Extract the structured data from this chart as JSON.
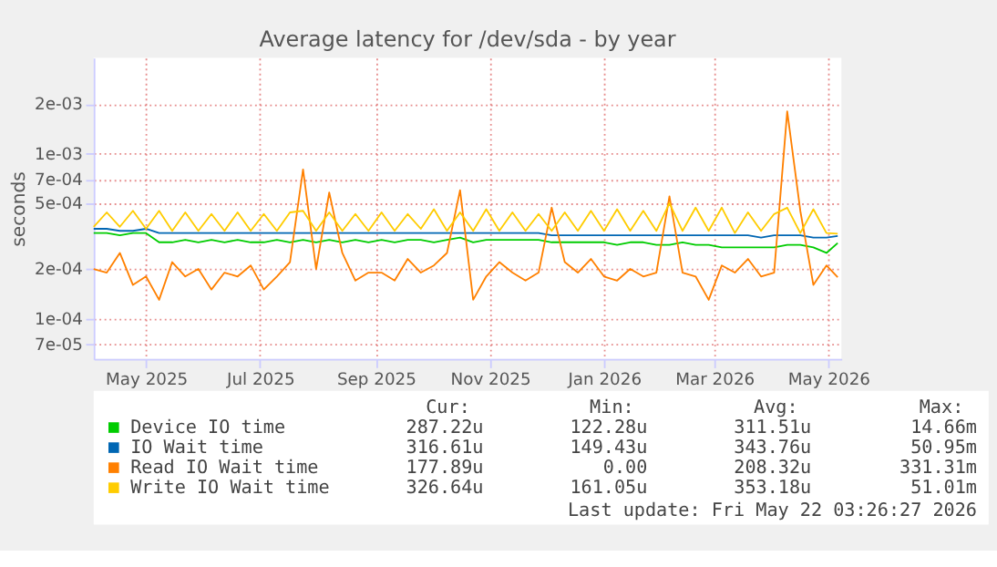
{
  "chart_data": {
    "type": "line",
    "title": "Average latency for /dev/sda - by year",
    "ylabel": "seconds",
    "log": "y",
    "grid": true,
    "legend": "bottom",
    "line_style": "solid",
    "marker": "none",
    "x": [
      "2025-04-03",
      "2025-04-10",
      "2025-04-17",
      "2025-04-24",
      "2025-05-01",
      "2025-05-08",
      "2025-05-15",
      "2025-05-22",
      "2025-05-29",
      "2025-06-05",
      "2025-06-12",
      "2025-06-19",
      "2025-06-26",
      "2025-07-03",
      "2025-07-10",
      "2025-07-17",
      "2025-07-24",
      "2025-07-31",
      "2025-08-07",
      "2025-08-14",
      "2025-08-21",
      "2025-08-28",
      "2025-09-04",
      "2025-09-11",
      "2025-09-18",
      "2025-09-25",
      "2025-10-02",
      "2025-10-09",
      "2025-10-16",
      "2025-10-23",
      "2025-10-30",
      "2025-11-06",
      "2025-11-13",
      "2025-11-20",
      "2025-11-27",
      "2025-12-04",
      "2025-12-11",
      "2025-12-18",
      "2025-12-25",
      "2026-01-01",
      "2026-01-08",
      "2026-01-15",
      "2026-01-22",
      "2026-01-29",
      "2026-02-05",
      "2026-02-12",
      "2026-02-19",
      "2026-02-26",
      "2026-03-05",
      "2026-03-12",
      "2026-03-19",
      "2026-03-26",
      "2026-04-02",
      "2026-04-09",
      "2026-04-16",
      "2026-04-23",
      "2026-04-30",
      "2026-05-06"
    ],
    "xlim": [
      "2025-04-03",
      "2026-05-08"
    ],
    "xticks": [
      {
        "value": "2025-05-01",
        "label": "May 2025"
      },
      {
        "value": "2025-07-01",
        "label": "Jul 2025"
      },
      {
        "value": "2025-09-01",
        "label": "Sep 2025"
      },
      {
        "value": "2025-11-01",
        "label": "Nov 2025"
      },
      {
        "value": "2026-01-01",
        "label": "Jan 2026"
      },
      {
        "value": "2026-03-01",
        "label": "Mar 2026"
      },
      {
        "value": "2026-05-01",
        "label": "May 2026"
      }
    ],
    "ylim": [
      5.7e-05,
      0.0038
    ],
    "yticks": [
      {
        "value": 7e-05,
        "label": "7e-05"
      },
      {
        "value": 0.0001,
        "label": "1e-04"
      },
      {
        "value": 0.0002,
        "label": "2e-04"
      },
      {
        "value": 0.0005,
        "label": "5e-04"
      },
      {
        "value": 0.0007,
        "label": "7e-04"
      },
      {
        "value": 0.001,
        "label": "1e-03"
      },
      {
        "value": 0.002,
        "label": "2e-03"
      }
    ],
    "series": [
      {
        "name": "Device IO time",
        "color": "#00cc00",
        "values": [
          0.00033,
          0.00033,
          0.00032,
          0.00033,
          0.00033,
          0.00029,
          0.00029,
          0.0003,
          0.00029,
          0.0003,
          0.00029,
          0.0003,
          0.00029,
          0.00029,
          0.0003,
          0.00029,
          0.0003,
          0.00029,
          0.0003,
          0.00029,
          0.0003,
          0.00029,
          0.0003,
          0.00029,
          0.0003,
          0.0003,
          0.00029,
          0.0003,
          0.00031,
          0.00029,
          0.0003,
          0.0003,
          0.0003,
          0.0003,
          0.0003,
          0.00029,
          0.00029,
          0.00029,
          0.00029,
          0.00029,
          0.00028,
          0.00029,
          0.00029,
          0.00028,
          0.00028,
          0.00029,
          0.00028,
          0.00028,
          0.00027,
          0.00027,
          0.00027,
          0.00027,
          0.00027,
          0.00028,
          0.00028,
          0.00027,
          0.00025,
          0.000287
        ]
      },
      {
        "name": "IO Wait time",
        "color": "#0066b3",
        "values": [
          0.00035,
          0.00035,
          0.00034,
          0.00034,
          0.00035,
          0.00033,
          0.00033,
          0.00033,
          0.00033,
          0.00033,
          0.00033,
          0.00033,
          0.00033,
          0.00033,
          0.00033,
          0.00033,
          0.00033,
          0.00033,
          0.00033,
          0.00033,
          0.00033,
          0.00033,
          0.00033,
          0.00033,
          0.00033,
          0.00033,
          0.00033,
          0.00033,
          0.00033,
          0.00033,
          0.00033,
          0.00033,
          0.00033,
          0.00033,
          0.00033,
          0.00032,
          0.00032,
          0.00032,
          0.00032,
          0.00032,
          0.00032,
          0.00032,
          0.00032,
          0.00032,
          0.00032,
          0.00032,
          0.00032,
          0.00032,
          0.00032,
          0.00032,
          0.00032,
          0.00031,
          0.00032,
          0.00032,
          0.00032,
          0.00031,
          0.00031,
          0.000317
        ]
      },
      {
        "name": "Read IO Wait time",
        "color": "#ff8000",
        "values": [
          0.0002,
          0.00019,
          0.00025,
          0.00016,
          0.00018,
          0.00013,
          0.00022,
          0.00018,
          0.0002,
          0.00015,
          0.00019,
          0.00018,
          0.00021,
          0.00015,
          0.00018,
          0.00022,
          0.0008,
          0.0002,
          0.00058,
          0.00025,
          0.00017,
          0.00019,
          0.00019,
          0.00017,
          0.00023,
          0.00019,
          0.00021,
          0.00025,
          0.0006,
          0.00013,
          0.00018,
          0.00022,
          0.00019,
          0.00017,
          0.00019,
          0.00047,
          0.00022,
          0.00019,
          0.00023,
          0.00018,
          0.00017,
          0.0002,
          0.00018,
          0.00019,
          0.00055,
          0.00019,
          0.00018,
          0.00013,
          0.00021,
          0.00019,
          0.00023,
          0.00018,
          0.00019,
          0.0018,
          0.00045,
          0.00016,
          0.00021,
          0.000178
        ]
      },
      {
        "name": "Write IO Wait time",
        "color": "#ffcc00",
        "values": [
          0.00036,
          0.00044,
          0.00036,
          0.00045,
          0.00035,
          0.00045,
          0.00034,
          0.00044,
          0.00034,
          0.00043,
          0.00034,
          0.00044,
          0.00034,
          0.00043,
          0.00034,
          0.00044,
          0.00045,
          0.00034,
          0.00044,
          0.00034,
          0.00043,
          0.00034,
          0.00044,
          0.00034,
          0.00043,
          0.00035,
          0.00046,
          0.00034,
          0.00044,
          0.00034,
          0.00046,
          0.00034,
          0.00044,
          0.00034,
          0.00043,
          0.00034,
          0.00044,
          0.00034,
          0.00045,
          0.00034,
          0.00046,
          0.00034,
          0.00045,
          0.00034,
          0.0005,
          0.00034,
          0.00047,
          0.00034,
          0.00047,
          0.00033,
          0.00044,
          0.00034,
          0.00043,
          0.00047,
          0.00033,
          0.00046,
          0.00033,
          0.000327
        ]
      }
    ],
    "annotations": [
      "Cur:",
      "Min:",
      "Avg:",
      "Max:",
      "287.22u",
      "122.28u",
      "311.51u",
      "14.66m",
      "316.61u",
      "149.43u",
      "343.76u",
      "50.95m",
      "177.89u",
      "0.00",
      "208.32u",
      "331.31m",
      "326.64u",
      "161.05u",
      "353.18u",
      "51.01m",
      "Last update: Fri May 22 03:26:27 2026"
    ]
  }
}
